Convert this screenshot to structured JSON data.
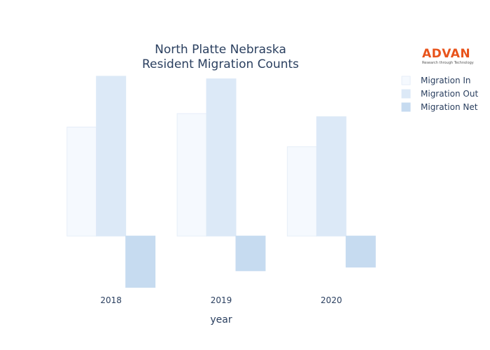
{
  "logo": {
    "name": "ADVAN",
    "tagline": "Research through Technology",
    "color": "#e8541c"
  },
  "chart_data": {
    "type": "bar",
    "title_lines": [
      "North Platte Nebraska",
      "Resident Migration Counts"
    ],
    "xlabel": "year",
    "ylabel": "",
    "categories": [
      "2018",
      "2019",
      "2020"
    ],
    "ylim": [
      -10500,
      32000
    ],
    "grid": false,
    "legend_position": "top-right",
    "series": [
      {
        "name": "Migration In",
        "values": [
          21000,
          23600,
          17200
        ],
        "color": "#f5f9fe",
        "stroke": "#e6eef8"
      },
      {
        "name": "Migration Out",
        "values": [
          30800,
          30300,
          23000
        ],
        "color": "#dce9f7",
        "stroke": "#dce9f7"
      },
      {
        "name": "Migration Net",
        "values": [
          -9900,
          -6700,
          -6000
        ],
        "color": "#c6dbf0",
        "stroke": "#c6dbf0"
      }
    ]
  }
}
